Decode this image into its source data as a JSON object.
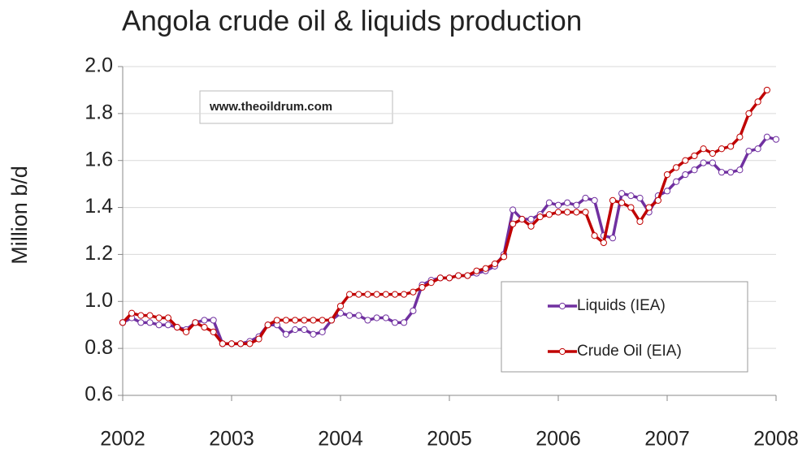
{
  "chart_data": {
    "type": "line",
    "title": "Angola crude oil & liquids production",
    "y_label": "Million b/d",
    "annotation": "www.theoildrum.com",
    "x": [
      2002,
      2002.083,
      2002.167,
      2002.25,
      2002.333,
      2002.417,
      2002.5,
      2002.583,
      2002.667,
      2002.75,
      2002.833,
      2002.917,
      2003,
      2003.083,
      2003.167,
      2003.25,
      2003.333,
      2003.417,
      2003.5,
      2003.583,
      2003.667,
      2003.75,
      2003.833,
      2003.917,
      2004,
      2004.083,
      2004.167,
      2004.25,
      2004.333,
      2004.417,
      2004.5,
      2004.583,
      2004.667,
      2004.75,
      2004.833,
      2004.917,
      2005,
      2005.083,
      2005.167,
      2005.25,
      2005.333,
      2005.417,
      2005.5,
      2005.583,
      2005.667,
      2005.75,
      2005.833,
      2005.917,
      2006,
      2006.083,
      2006.167,
      2006.25,
      2006.333,
      2006.417,
      2006.5,
      2006.583,
      2006.667,
      2006.75,
      2006.833,
      2006.917,
      2007,
      2007.083,
      2007.167,
      2007.25,
      2007.333,
      2007.417,
      2007.5,
      2007.583,
      2007.667,
      2007.75,
      2007.833,
      2007.917,
      2008
    ],
    "series": [
      {
        "name": "Liquids (IEA)",
        "color": "#7030a0",
        "values": [
          0.91,
          0.93,
          0.91,
          0.91,
          0.9,
          0.9,
          0.89,
          0.88,
          0.91,
          0.92,
          0.92,
          0.82,
          0.82,
          0.82,
          0.83,
          0.85,
          0.9,
          0.9,
          0.86,
          0.88,
          0.88,
          0.86,
          0.87,
          0.92,
          0.95,
          0.94,
          0.94,
          0.92,
          0.93,
          0.93,
          0.91,
          0.91,
          0.96,
          1.07,
          1.09,
          1.1,
          1.1,
          1.11,
          1.11,
          1.12,
          1.13,
          1.15,
          1.2,
          1.39,
          1.35,
          1.35,
          1.37,
          1.42,
          1.41,
          1.42,
          1.41,
          1.44,
          1.43,
          1.28,
          1.27,
          1.46,
          1.45,
          1.44,
          1.38,
          1.45,
          1.47,
          1.51,
          1.54,
          1.56,
          1.59,
          1.59,
          1.55,
          1.55,
          1.56,
          1.64,
          1.65,
          1.7,
          1.69
        ]
      },
      {
        "name": "Crude Oil (EIA)",
        "color": "#c00000",
        "values": [
          0.91,
          0.95,
          0.94,
          0.94,
          0.93,
          0.93,
          0.89,
          0.87,
          0.91,
          0.89,
          0.87,
          0.82,
          0.82,
          0.82,
          0.82,
          0.84,
          0.9,
          0.92,
          0.92,
          0.92,
          0.92,
          0.92,
          0.92,
          0.92,
          0.98,
          1.03,
          1.03,
          1.03,
          1.03,
          1.03,
          1.03,
          1.03,
          1.04,
          1.06,
          1.08,
          1.1,
          1.1,
          1.11,
          1.11,
          1.13,
          1.14,
          1.16,
          1.19,
          1.33,
          1.35,
          1.32,
          1.36,
          1.37,
          1.38,
          1.38,
          1.38,
          1.38,
          1.28,
          1.25,
          1.43,
          1.42,
          1.4,
          1.34,
          1.4,
          1.43,
          1.54,
          1.57,
          1.6,
          1.62,
          1.65,
          1.63,
          1.65,
          1.66,
          1.7,
          1.8,
          1.85,
          1.9,
          null
        ]
      }
    ],
    "xlim": [
      2002,
      2008
    ],
    "xticks": [
      2002,
      2003,
      2004,
      2005,
      2006,
      2007,
      2008
    ],
    "ylim": [
      0.6,
      2.0
    ],
    "yticks": [
      {
        "value": 0.6,
        "label": "0.6"
      },
      {
        "value": 0.8,
        "label": "0.8"
      },
      {
        "value": 1.0,
        "label": "1.0"
      },
      {
        "value": 1.2,
        "label": "1.2"
      },
      {
        "value": 1.4,
        "label": "1.4"
      },
      {
        "value": 1.6,
        "label": "1.6"
      },
      {
        "value": 1.8,
        "label": "1.8"
      },
      {
        "value": 2.0,
        "label": "2.0"
      }
    ],
    "grid": true,
    "legend": "lower right"
  }
}
